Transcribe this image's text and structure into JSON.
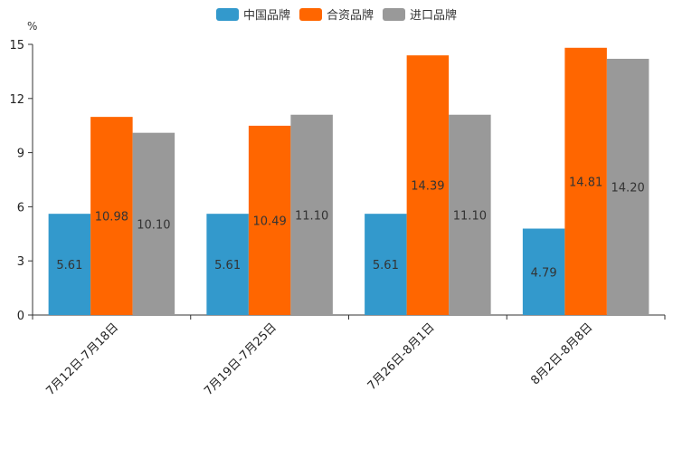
{
  "chart_data": {
    "type": "bar",
    "title": "",
    "unit": "%",
    "categories": [
      "7月12日-7月18日",
      "7月19日-7月25日",
      "7月26日-8月1日",
      "8月2日-8月8日"
    ],
    "series": [
      {
        "name": "中国品牌",
        "color": "#3399cc",
        "values": [
          5.61,
          5.61,
          5.61,
          4.79
        ],
        "labels": [
          "5.61",
          "5.61",
          "5.61",
          "4.79"
        ]
      },
      {
        "name": "合资品牌",
        "color": "#ff6600",
        "values": [
          10.98,
          10.49,
          14.39,
          14.81
        ],
        "labels": [
          "10.98",
          "10.49",
          "14.39",
          "14.81"
        ]
      },
      {
        "name": "进口品牌",
        "color": "#999999",
        "values": [
          10.1,
          11.1,
          11.1,
          14.2
        ],
        "labels": [
          "10.10",
          "11.10",
          "11.10",
          "14.20"
        ]
      }
    ],
    "yticks": [
      "0",
      "3",
      "6",
      "9",
      "12",
      "15"
    ],
    "ylim": [
      0,
      15
    ],
    "legend_position": "top-center"
  }
}
